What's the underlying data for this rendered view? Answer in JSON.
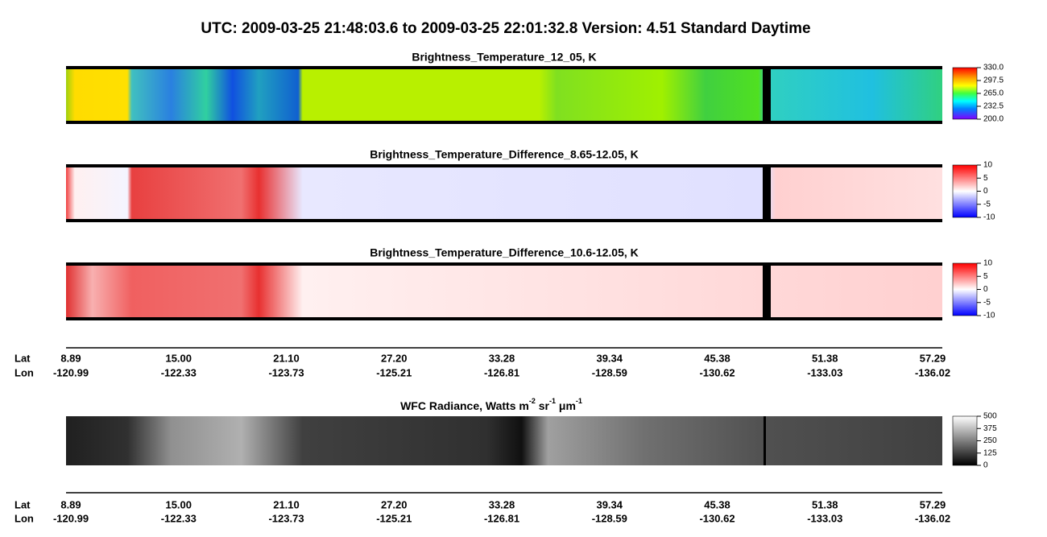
{
  "header": {
    "title": "UTC:  2009-03-25   21:48:03.6  to  2009-03-25   22:01:32.8    Version: 4.51  Standard Daytime"
  },
  "panels": [
    {
      "title": "Brightness_Temperature_12_05, K",
      "colorbar": [
        "330.0",
        "297.5",
        "265.0",
        "232.5",
        "200.0"
      ]
    },
    {
      "title": "Brightness_Temperature_Difference_8.65-12.05, K",
      "colorbar": [
        "10",
        "5",
        "0",
        "-5",
        "-10"
      ]
    },
    {
      "title": "Brightness_Temperature_Difference_10.6-12.05, K",
      "colorbar": [
        "10",
        "5",
        "0",
        "-5",
        "-10"
      ]
    },
    {
      "title_parts": [
        "WFC Radiance, Watts m",
        "-2",
        " sr",
        "-1",
        " μm",
        "-1"
      ],
      "colorbar": [
        "500",
        "375",
        "250",
        "125",
        "0"
      ]
    }
  ],
  "axis": {
    "lat_label": "Lat",
    "lon_label": "Lon",
    "lat": [
      "8.89",
      "15.00",
      "21.10",
      "27.20",
      "33.28",
      "39.34",
      "45.38",
      "51.38",
      "57.29"
    ],
    "lon": [
      "-120.99",
      "-122.33",
      "-123.73",
      "-125.21",
      "-126.81",
      "-128.59",
      "-130.62",
      "-133.03",
      "-136.02"
    ]
  }
}
